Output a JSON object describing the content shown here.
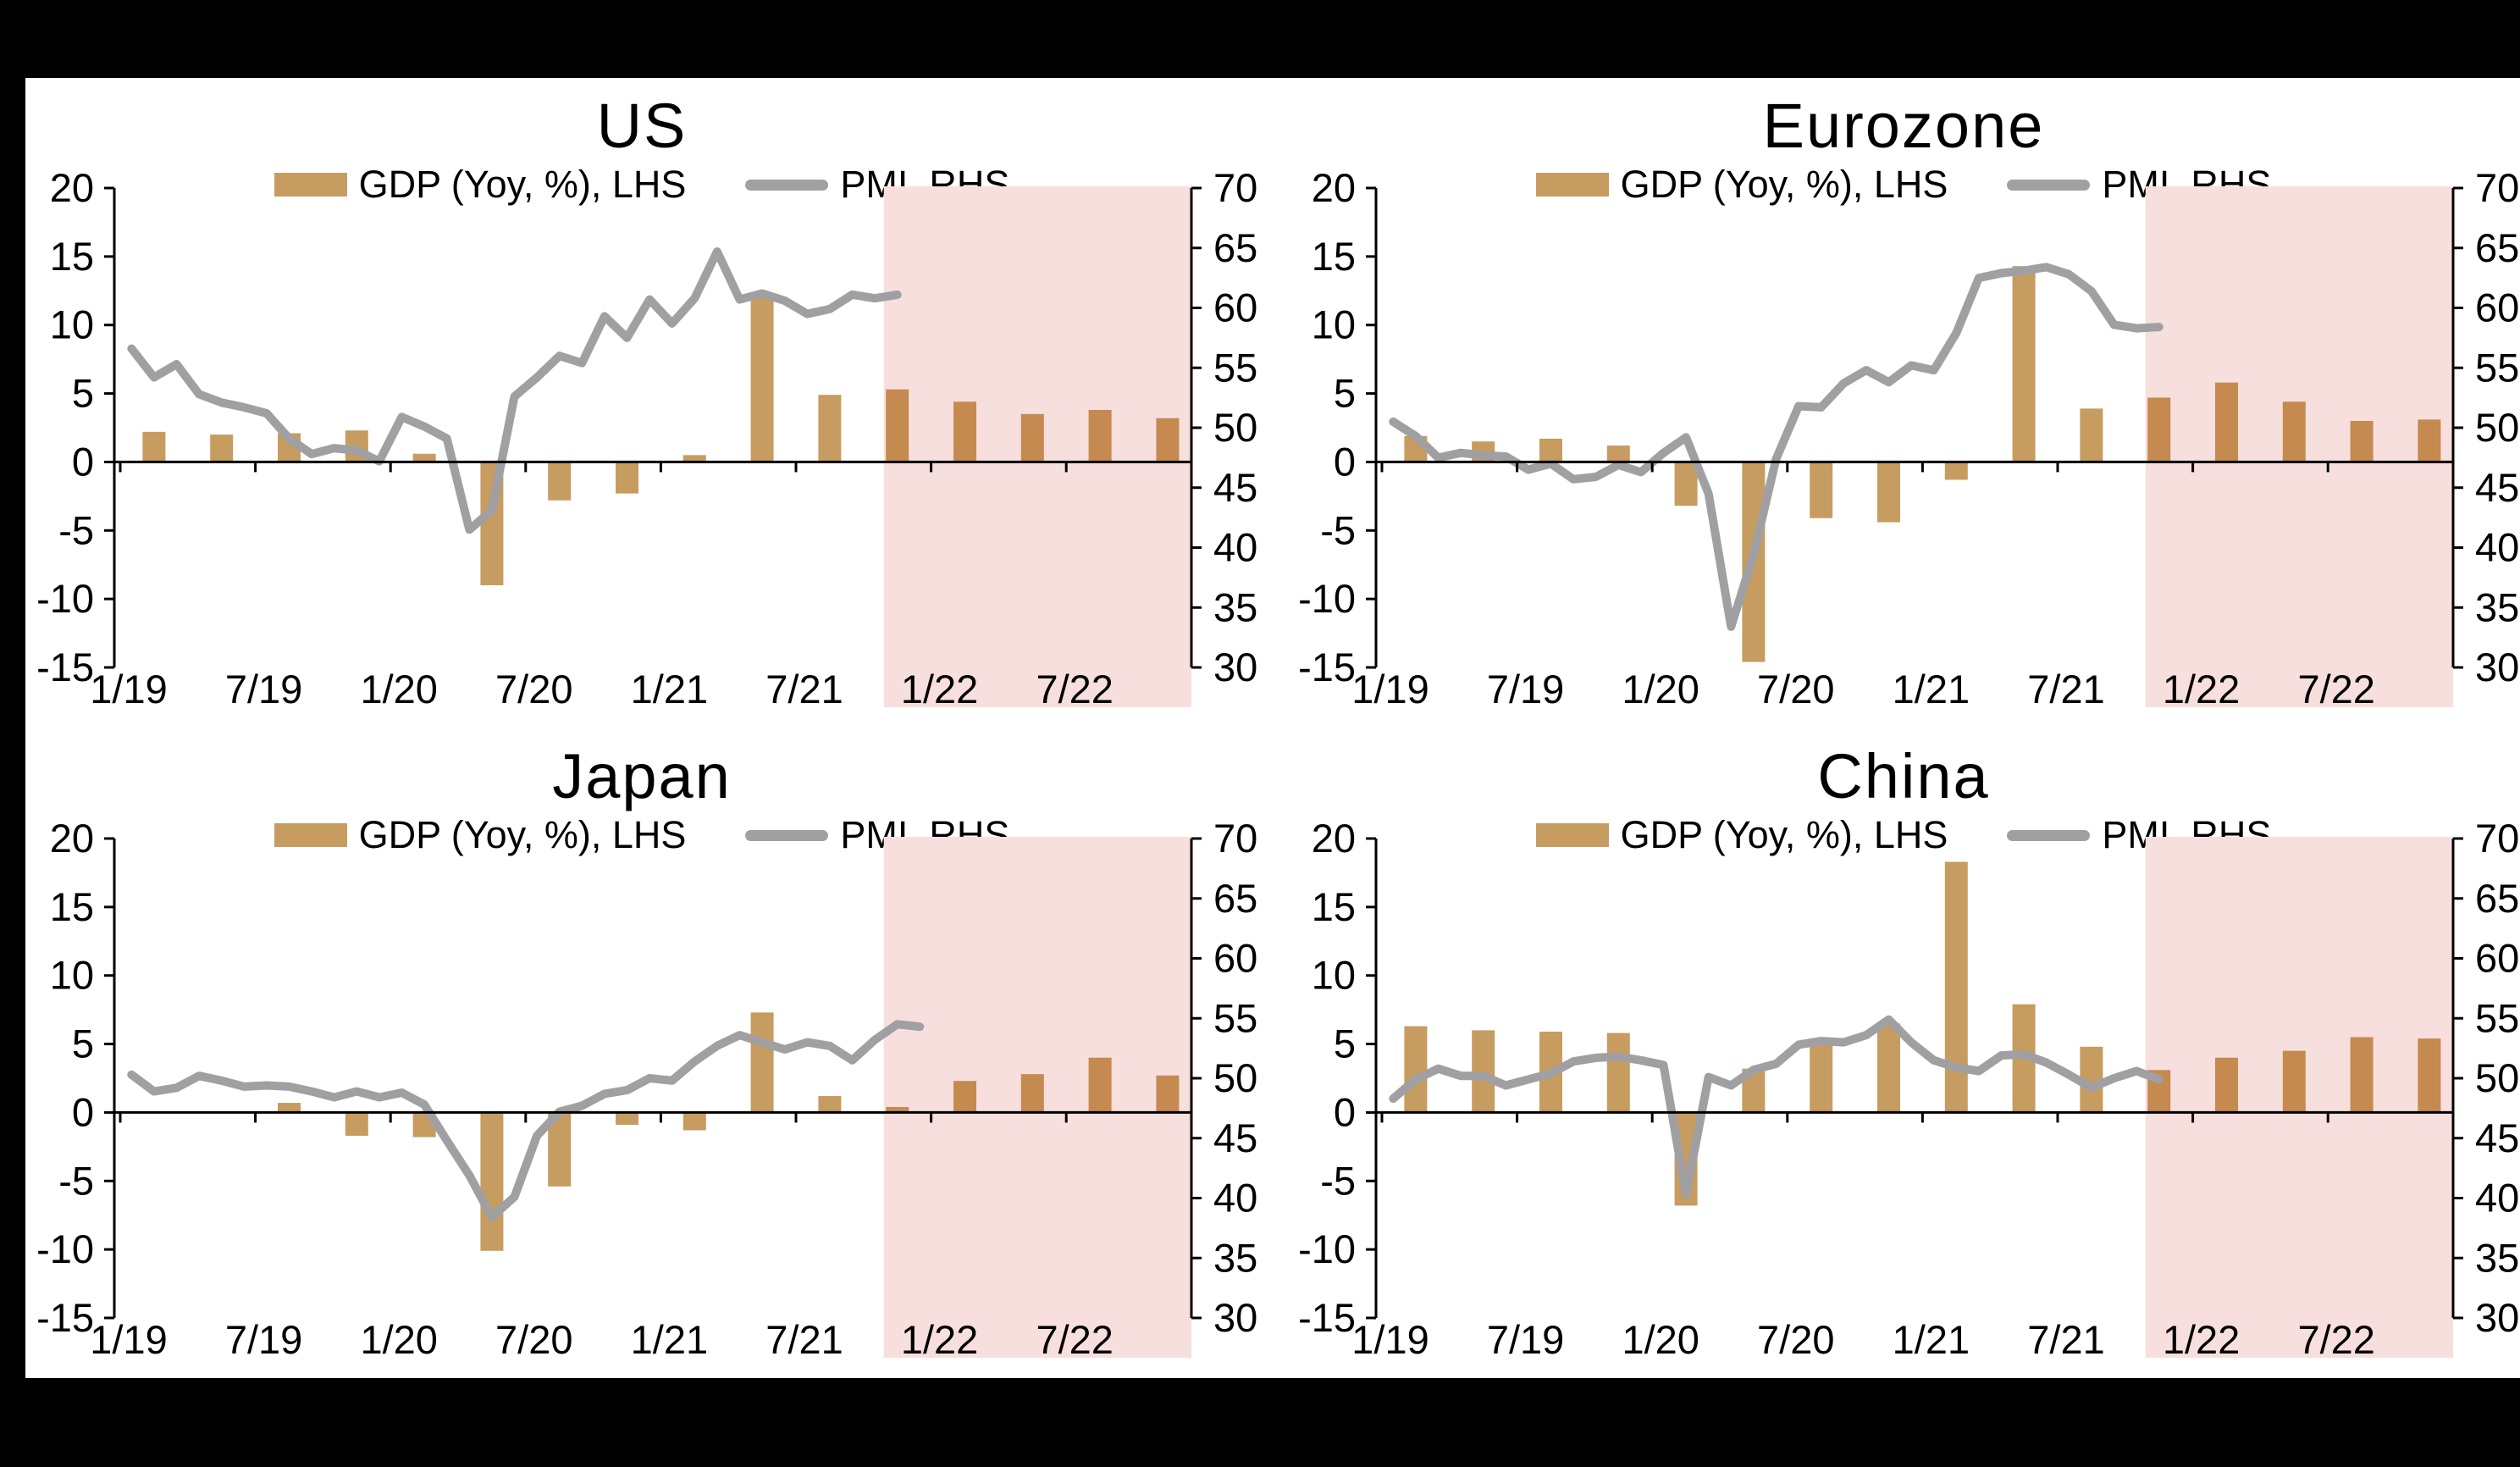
{
  "colors": {
    "background": "#000000",
    "panel": "#ffffff",
    "gdp_bar": "#C69C60",
    "gdp_bar_forecast": "#C58A50",
    "pmi_line": "#A0A0A3",
    "forecast_shade": "#F7DFDE",
    "axis": "#000000",
    "text": "#000000"
  },
  "legend": {
    "gdp_label": "GDP (Yoy, %), LHS",
    "pmi_label": "PMI, RHS"
  },
  "chart_data": [
    {
      "type": "combo",
      "title": "US",
      "left_axis": {
        "ticks": [
          20,
          15,
          10,
          5,
          0,
          -5,
          -10,
          -15
        ],
        "range": [
          -15,
          20
        ]
      },
      "right_axis": {
        "ticks": [
          70,
          65,
          60,
          55,
          50,
          45,
          40,
          35,
          30
        ],
        "range": [
          30,
          70
        ]
      },
      "x_tick_labels": [
        "1/19",
        "7/19",
        "1/20",
        "7/20",
        "1/21",
        "7/21",
        "1/22",
        "7/22"
      ],
      "forecast_shade": {
        "starts_at": "12/21",
        "note": "shaded forecast period"
      },
      "series": [
        {
          "name": "GDP (Yoy, %), LHS",
          "type": "bar",
          "axis": "left",
          "freq": "quarterly",
          "start": "2019Q1",
          "values": [
            2.2,
            2.0,
            2.1,
            2.3,
            0.6,
            -9.0,
            -2.8,
            -2.3,
            0.5,
            12.2,
            4.9,
            5.3,
            4.4,
            3.5,
            3.8,
            3.2
          ],
          "forecast_from_index": 11
        },
        {
          "name": "PMI, RHS",
          "type": "line",
          "axis": "right",
          "freq": "monthly",
          "start": "2019-01",
          "values": [
            56.6,
            54.2,
            55.3,
            52.8,
            52.1,
            51.7,
            51.2,
            49.1,
            47.8,
            48.3,
            48.1,
            47.2,
            50.9,
            50.1,
            49.1,
            41.5,
            43.1,
            52.6,
            54.2,
            56.0,
            55.4,
            59.3,
            57.5,
            60.7,
            58.7,
            60.8,
            64.7,
            60.7,
            61.2,
            60.6,
            59.5,
            59.9,
            61.1,
            60.8,
            61.1
          ]
        }
      ]
    },
    {
      "type": "combo",
      "title": "Eurozone",
      "left_axis": {
        "ticks": [
          20,
          15,
          10,
          5,
          0,
          -5,
          -10,
          -15
        ],
        "range": [
          -15,
          20
        ]
      },
      "right_axis": {
        "ticks": [
          70,
          65,
          60,
          55,
          50,
          45,
          40,
          35,
          30
        ],
        "range": [
          30,
          70
        ]
      },
      "x_tick_labels": [
        "1/19",
        "7/19",
        "1/20",
        "7/20",
        "1/21",
        "7/21",
        "1/22",
        "7/22"
      ],
      "forecast_shade": {
        "starts_at": "12/21",
        "note": "shaded forecast period"
      },
      "series": [
        {
          "name": "GDP (Yoy, %), LHS",
          "type": "bar",
          "axis": "left",
          "freq": "quarterly",
          "start": "2019Q1",
          "values": [
            1.9,
            1.5,
            1.7,
            1.2,
            -3.2,
            -14.6,
            -4.1,
            -4.4,
            -1.3,
            14.3,
            3.9,
            4.7,
            5.8,
            4.4,
            3.0,
            3.1
          ],
          "forecast_from_index": 11
        },
        {
          "name": "PMI, RHS",
          "type": "line",
          "axis": "right",
          "freq": "monthly",
          "start": "2019-01",
          "values": [
            50.5,
            49.3,
            47.5,
            47.9,
            47.7,
            47.6,
            46.5,
            47.0,
            45.7,
            45.9,
            46.9,
            46.3,
            47.9,
            49.2,
            44.5,
            33.4,
            39.4,
            47.4,
            51.8,
            51.7,
            53.7,
            54.8,
            53.8,
            55.2,
            54.8,
            57.9,
            62.5,
            62.9,
            63.1,
            63.4,
            62.8,
            61.4,
            58.6,
            58.3,
            58.4
          ]
        }
      ]
    },
    {
      "type": "combo",
      "title": "Japan",
      "left_axis": {
        "ticks": [
          20,
          15,
          10,
          5,
          0,
          -5,
          -10,
          -15
        ],
        "range": [
          -15,
          20
        ]
      },
      "right_axis": {
        "ticks": [
          70,
          65,
          60,
          55,
          50,
          45,
          40,
          35,
          30
        ],
        "range": [
          30,
          70
        ]
      },
      "x_tick_labels": [
        "1/19",
        "7/19",
        "1/20",
        "7/20",
        "1/21",
        "7/21",
        "1/22",
        "7/22"
      ],
      "forecast_shade": {
        "starts_at": "12/21",
        "note": "shaded forecast period"
      },
      "series": [
        {
          "name": "GDP (Yoy, %), LHS",
          "type": "bar",
          "axis": "left",
          "freq": "quarterly",
          "start": "2019Q1",
          "values": [
            0.0,
            0.0,
            0.7,
            -1.7,
            -1.8,
            -10.1,
            -5.4,
            -0.9,
            -1.3,
            7.3,
            1.2,
            0.4,
            2.3,
            2.8,
            4.0,
            2.7
          ],
          "forecast_from_index": 11
        },
        {
          "name": "PMI, RHS",
          "type": "line",
          "axis": "right",
          "freq": "monthly",
          "start": "2019-01",
          "values": [
            50.3,
            48.9,
            49.2,
            50.2,
            49.8,
            49.3,
            49.4,
            49.3,
            48.9,
            48.4,
            48.9,
            48.4,
            48.8,
            47.8,
            44.8,
            41.9,
            38.4,
            40.1,
            45.2,
            47.2,
            47.7,
            48.7,
            49.0,
            50.0,
            49.8,
            51.4,
            52.7,
            53.6,
            53.0,
            52.4,
            53.0,
            52.7,
            51.5,
            53.2,
            54.5,
            54.3
          ]
        }
      ]
    },
    {
      "type": "combo",
      "title": "China",
      "left_axis": {
        "ticks": [
          20,
          15,
          10,
          5,
          0,
          -5,
          -10,
          -15
        ],
        "range": [
          -15,
          20
        ]
      },
      "right_axis": {
        "ticks": [
          70,
          65,
          60,
          55,
          50,
          45,
          40,
          35,
          30
        ],
        "range": [
          30,
          70
        ]
      },
      "x_tick_labels": [
        "1/19",
        "7/19",
        "1/20",
        "7/20",
        "1/21",
        "7/21",
        "1/22",
        "7/22"
      ],
      "forecast_shade": {
        "starts_at": "12/21",
        "note": "shaded forecast period"
      },
      "series": [
        {
          "name": "GDP (Yoy, %), LHS",
          "type": "bar",
          "axis": "left",
          "freq": "quarterly",
          "start": "2019Q1",
          "values": [
            6.3,
            6.0,
            5.9,
            5.8,
            -6.8,
            3.2,
            4.9,
            6.5,
            18.3,
            7.9,
            4.8,
            3.1,
            4.0,
            4.5,
            5.5,
            5.4
          ],
          "forecast_from_index": 11
        },
        {
          "name": "PMI, RHS",
          "type": "line",
          "axis": "right",
          "freq": "monthly",
          "start": "2019-01",
          "values": [
            48.3,
            49.9,
            50.8,
            50.2,
            50.2,
            49.4,
            49.9,
            50.4,
            51.4,
            51.7,
            51.8,
            51.5,
            51.1,
            40.3,
            50.1,
            49.4,
            50.7,
            51.2,
            52.8,
            53.1,
            53.0,
            53.6,
            54.9,
            53.0,
            51.5,
            50.9,
            50.6,
            51.9,
            52.0,
            51.3,
            50.3,
            49.2,
            50.0,
            50.6,
            49.9
          ]
        }
      ]
    }
  ]
}
